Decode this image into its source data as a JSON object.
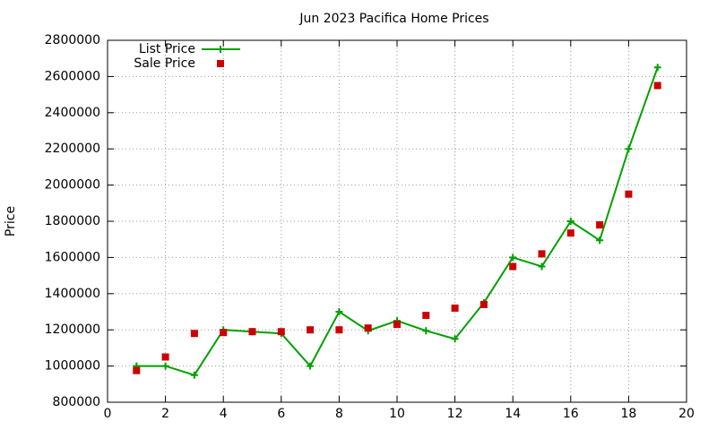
{
  "chart_data": {
    "type": "line",
    "title": "Jun 2023 Pacifica Home Prices",
    "y_label": "Price",
    "x": [
      1,
      2,
      3,
      4,
      5,
      6,
      7,
      8,
      9,
      10,
      11,
      12,
      13,
      14,
      15,
      16,
      17,
      18,
      19
    ],
    "series": [
      {
        "name": "List Price",
        "color": "#00a000",
        "style": "lines+points",
        "values": [
          1000000,
          1000000,
          950000,
          1200000,
          1190000,
          1180000,
          1000000,
          1300000,
          1195000,
          1250000,
          1195000,
          1150000,
          1350000,
          1600000,
          1550000,
          1800000,
          1695000,
          2200000,
          2650000
        ]
      },
      {
        "name": "Sale Price",
        "color": "#cc0000",
        "style": "points",
        "values": [
          975000,
          1050000,
          1180000,
          1185000,
          1190000,
          1190000,
          1200000,
          1200000,
          1210000,
          1230000,
          1280000,
          1320000,
          1340000,
          1550000,
          1620000,
          1735000,
          1780000,
          1950000,
          2550000
        ]
      }
    ],
    "xlim": [
      0,
      20
    ],
    "xticks": [
      0,
      2,
      4,
      6,
      8,
      10,
      12,
      14,
      16,
      18,
      20
    ],
    "ylim": [
      800000,
      2800000
    ],
    "yticks": [
      800000,
      1000000,
      1200000,
      1400000,
      1600000,
      1800000,
      2000000,
      2200000,
      2400000,
      2600000,
      2800000
    ],
    "grid": true,
    "legend": "top-left"
  }
}
